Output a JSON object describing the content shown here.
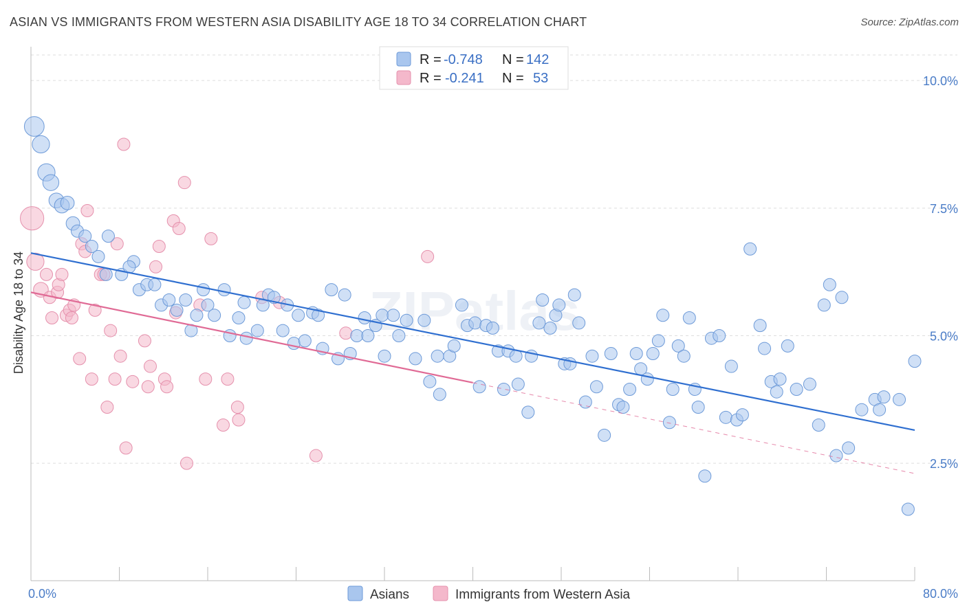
{
  "title": "ASIAN VS IMMIGRANTS FROM WESTERN ASIA DISABILITY AGE 18 TO 34 CORRELATION CHART",
  "source": "Source: ZipAtlas.com",
  "watermark": "ZIPatlas",
  "colors": {
    "asian_fill": "#a9c6ee",
    "asian_stroke": "#6d9ad8",
    "asian_line": "#2f6fd0",
    "imm_fill": "#f4b8cb",
    "imm_stroke": "#e590ac",
    "imm_line": "#e06a95",
    "tick": "#4a7cc7",
    "grid": "#dddddd"
  },
  "legend": {
    "rows": [
      {
        "r_label": "R = ",
        "r_value": "-0.748",
        "n_label": "N = ",
        "n_value": "142"
      },
      {
        "r_label": "R = ",
        "r_value": "-0.241",
        "n_label": "N = ",
        "n_value": "53"
      }
    ]
  },
  "bottom_legend": {
    "asians": "Asians",
    "immigrants": "Immigrants from Western Asia"
  },
  "chart_data": {
    "type": "scatter",
    "title": "ASIAN VS IMMIGRANTS FROM WESTERN ASIA DISABILITY AGE 18 TO 34 CORRELATION CHART",
    "xlabel": "",
    "ylabel": "Disability Age 18 to 34",
    "xlim": [
      0,
      80
    ],
    "ylim": [
      0.2,
      10.5
    ],
    "x_tick_labels": [
      "0.0%",
      "80.0%"
    ],
    "y_ticks": [
      2.5,
      5.0,
      7.5,
      10.0
    ],
    "y_tick_labels": [
      "2.5%",
      "5.0%",
      "7.5%",
      "10.0%"
    ],
    "grid": true,
    "legend_position": "top-center",
    "series": [
      {
        "name": "Asians",
        "R": -0.748,
        "N": 142,
        "trend": {
          "x0": 0,
          "y0": 6.62,
          "x1": 80,
          "y1": 3.15
        },
        "points": [
          [
            0.3,
            9.1,
            1.6
          ],
          [
            0.9,
            8.75,
            1.4
          ],
          [
            1.4,
            8.2,
            1.4
          ],
          [
            1.8,
            8.0,
            1.3
          ],
          [
            2.3,
            7.65,
            1.2
          ],
          [
            2.8,
            7.55,
            1.2
          ],
          [
            3.3,
            7.6,
            1.1
          ],
          [
            3.8,
            7.2,
            1.1
          ],
          [
            4.2,
            7.05,
            1.0
          ],
          [
            4.9,
            6.95,
            1.0
          ],
          [
            5.5,
            6.75,
            1.0
          ],
          [
            6.1,
            6.55,
            1.0
          ],
          [
            7.0,
            6.95,
            1.0
          ],
          [
            6.8,
            6.2,
            1.0
          ],
          [
            8.2,
            6.2,
            1.0
          ],
          [
            9.3,
            6.45,
            1.0
          ],
          [
            8.9,
            6.35,
            1.0
          ],
          [
            9.8,
            5.9,
            1.0
          ],
          [
            10.5,
            6.0,
            1.0
          ],
          [
            11.2,
            6.0,
            1.0
          ],
          [
            11.8,
            5.6,
            1.0
          ],
          [
            12.5,
            5.7,
            1.0
          ],
          [
            13.2,
            5.5,
            1.0
          ],
          [
            14.0,
            5.7,
            1.0
          ],
          [
            14.5,
            5.1,
            1.0
          ],
          [
            15.0,
            5.4,
            1.0
          ],
          [
            15.6,
            5.9,
            1.0
          ],
          [
            16.0,
            5.6,
            1.0
          ],
          [
            16.6,
            5.4,
            1.0
          ],
          [
            17.5,
            5.9,
            1.0
          ],
          [
            18.0,
            5.0,
            1.0
          ],
          [
            18.8,
            5.35,
            1.0
          ],
          [
            19.3,
            5.65,
            1.0
          ],
          [
            19.5,
            4.95,
            1.0
          ],
          [
            20.5,
            5.1,
            1.0
          ],
          [
            21.0,
            5.6,
            1.0
          ],
          [
            21.5,
            5.8,
            1.0
          ],
          [
            22.0,
            5.75,
            1.0
          ],
          [
            22.8,
            5.1,
            1.0
          ],
          [
            23.2,
            5.6,
            1.0
          ],
          [
            23.8,
            4.85,
            1.0
          ],
          [
            24.2,
            5.4,
            1.0
          ],
          [
            24.8,
            4.9,
            1.0
          ],
          [
            25.5,
            5.45,
            1.0
          ],
          [
            26.0,
            5.4,
            1.0
          ],
          [
            26.4,
            4.75,
            1.0
          ],
          [
            27.2,
            5.9,
            1.0
          ],
          [
            27.8,
            4.55,
            1.0
          ],
          [
            28.4,
            5.8,
            1.0
          ],
          [
            28.9,
            4.65,
            1.0
          ],
          [
            29.5,
            5.0,
            1.0
          ],
          [
            30.2,
            5.35,
            1.0
          ],
          [
            30.5,
            5.0,
            1.0
          ],
          [
            31.2,
            5.2,
            1.0
          ],
          [
            31.8,
            5.4,
            1.0
          ],
          [
            32.0,
            4.6,
            1.0
          ],
          [
            32.8,
            5.4,
            1.0
          ],
          [
            33.3,
            5.0,
            1.0
          ],
          [
            34.0,
            5.3,
            1.0
          ],
          [
            34.8,
            4.55,
            1.0
          ],
          [
            35.6,
            5.3,
            1.0
          ],
          [
            36.1,
            4.1,
            1.0
          ],
          [
            36.8,
            4.6,
            1.0
          ],
          [
            37.0,
            3.85,
            1.0
          ],
          [
            37.9,
            4.6,
            1.0
          ],
          [
            38.3,
            4.8,
            1.0
          ],
          [
            39.0,
            5.6,
            1.0
          ],
          [
            39.5,
            5.2,
            1.0
          ],
          [
            40.2,
            5.25,
            1.0
          ],
          [
            40.6,
            4.0,
            1.0
          ],
          [
            41.2,
            5.2,
            1.0
          ],
          [
            41.8,
            5.15,
            1.0
          ],
          [
            42.3,
            4.7,
            1.0
          ],
          [
            42.8,
            3.95,
            1.0
          ],
          [
            43.2,
            4.7,
            1.0
          ],
          [
            43.9,
            4.6,
            1.0
          ],
          [
            44.1,
            4.05,
            1.0
          ],
          [
            45.0,
            3.5,
            1.0
          ],
          [
            45.3,
            4.6,
            1.0
          ],
          [
            46.0,
            5.25,
            1.0
          ],
          [
            46.3,
            5.7,
            1.0
          ],
          [
            47.0,
            5.15,
            1.0
          ],
          [
            47.5,
            5.4,
            1.0
          ],
          [
            47.8,
            5.6,
            1.0
          ],
          [
            48.3,
            4.45,
            1.0
          ],
          [
            48.8,
            4.45,
            1.0
          ],
          [
            49.2,
            5.8,
            1.0
          ],
          [
            49.6,
            5.25,
            1.0
          ],
          [
            50.2,
            3.7,
            1.0
          ],
          [
            50.8,
            4.6,
            1.0
          ],
          [
            51.2,
            4.0,
            1.0
          ],
          [
            51.9,
            3.05,
            1.0
          ],
          [
            52.5,
            4.65,
            1.0
          ],
          [
            53.2,
            3.65,
            1.0
          ],
          [
            53.6,
            3.6,
            1.0
          ],
          [
            54.2,
            3.95,
            1.0
          ],
          [
            54.8,
            4.65,
            1.0
          ],
          [
            55.2,
            4.35,
            1.0
          ],
          [
            55.8,
            4.15,
            1.0
          ],
          [
            56.3,
            4.65,
            1.0
          ],
          [
            56.8,
            4.9,
            1.0
          ],
          [
            57.2,
            5.4,
            1.0
          ],
          [
            57.8,
            3.3,
            1.0
          ],
          [
            58.1,
            3.95,
            1.0
          ],
          [
            58.6,
            4.8,
            1.0
          ],
          [
            59.1,
            4.6,
            1.0
          ],
          [
            59.6,
            5.35,
            1.0
          ],
          [
            60.1,
            3.95,
            1.0
          ],
          [
            60.4,
            3.6,
            1.0
          ],
          [
            61.0,
            2.25,
            1.0
          ],
          [
            61.6,
            4.95,
            1.0
          ],
          [
            62.3,
            5.0,
            1.0
          ],
          [
            62.9,
            3.4,
            1.0
          ],
          [
            63.4,
            4.4,
            1.0
          ],
          [
            63.9,
            3.35,
            1.0
          ],
          [
            64.4,
            3.45,
            1.0
          ],
          [
            65.1,
            6.7,
            1.0
          ],
          [
            66.0,
            5.2,
            1.0
          ],
          [
            66.4,
            4.75,
            1.0
          ],
          [
            67.0,
            4.1,
            1.0
          ],
          [
            67.5,
            3.9,
            1.0
          ],
          [
            67.8,
            4.15,
            1.0
          ],
          [
            68.5,
            4.8,
            1.0
          ],
          [
            69.3,
            3.95,
            1.0
          ],
          [
            70.5,
            4.05,
            1.0
          ],
          [
            71.3,
            3.25,
            1.0
          ],
          [
            71.8,
            5.6,
            1.0
          ],
          [
            72.3,
            6.0,
            1.0
          ],
          [
            72.9,
            2.65,
            1.0
          ],
          [
            73.4,
            5.75,
            1.0
          ],
          [
            74.0,
            2.8,
            1.0
          ],
          [
            75.2,
            3.55,
            1.0
          ],
          [
            76.4,
            3.75,
            1.0
          ],
          [
            76.8,
            3.55,
            1.0
          ],
          [
            77.2,
            3.8,
            1.0
          ],
          [
            78.6,
            3.75,
            1.0
          ],
          [
            79.4,
            1.6,
            1.0
          ],
          [
            80.0,
            4.5,
            1.0
          ]
        ]
      },
      {
        "name": "Immigrants from Western Asia",
        "R": -0.241,
        "N": 53,
        "trend": {
          "x0": 0,
          "y0": 5.85,
          "x1": 40,
          "y1": 4.08,
          "dash_x1": 80,
          "dash_y1": 2.3
        },
        "points": [
          [
            0.1,
            7.3,
            1.9
          ],
          [
            0.4,
            6.45,
            1.4
          ],
          [
            0.9,
            5.9,
            1.2
          ],
          [
            1.4,
            6.2,
            1.0
          ],
          [
            1.7,
            5.75,
            1.0
          ],
          [
            1.9,
            5.35,
            1.0
          ],
          [
            2.4,
            5.85,
            1.0
          ],
          [
            2.5,
            6.0,
            1.0
          ],
          [
            2.8,
            6.2,
            1.0
          ],
          [
            3.2,
            5.4,
            1.0
          ],
          [
            3.5,
            5.5,
            1.0
          ],
          [
            3.7,
            5.35,
            1.0
          ],
          [
            3.9,
            5.6,
            1.0
          ],
          [
            4.4,
            4.55,
            1.0
          ],
          [
            4.6,
            6.8,
            1.0
          ],
          [
            4.9,
            6.65,
            1.0
          ],
          [
            5.1,
            7.45,
            1.0
          ],
          [
            5.5,
            4.15,
            1.0
          ],
          [
            5.8,
            5.5,
            1.0
          ],
          [
            6.3,
            6.2,
            1.0
          ],
          [
            6.6,
            6.2,
            1.0
          ],
          [
            6.9,
            3.6,
            1.0
          ],
          [
            7.2,
            5.1,
            1.0
          ],
          [
            7.6,
            4.15,
            1.0
          ],
          [
            7.8,
            6.8,
            1.0
          ],
          [
            8.1,
            4.6,
            1.0
          ],
          [
            8.4,
            8.75,
            1.0
          ],
          [
            8.6,
            2.8,
            1.0
          ],
          [
            9.2,
            4.1,
            1.0
          ],
          [
            10.3,
            4.9,
            1.0
          ],
          [
            10.6,
            4.0,
            1.0
          ],
          [
            10.8,
            4.4,
            1.0
          ],
          [
            11.3,
            6.35,
            1.0
          ],
          [
            11.6,
            6.75,
            1.0
          ],
          [
            12.1,
            4.15,
            1.0
          ],
          [
            12.3,
            4.0,
            1.0
          ],
          [
            12.9,
            7.25,
            1.0
          ],
          [
            13.1,
            5.45,
            1.0
          ],
          [
            13.4,
            7.1,
            1.0
          ],
          [
            13.9,
            8.0,
            1.0
          ],
          [
            14.1,
            2.5,
            1.0
          ],
          [
            15.3,
            5.6,
            1.0
          ],
          [
            15.8,
            4.15,
            1.0
          ],
          [
            16.3,
            6.9,
            1.0
          ],
          [
            17.4,
            3.25,
            1.0
          ],
          [
            17.8,
            4.15,
            1.0
          ],
          [
            18.8,
            3.35,
            1.0
          ],
          [
            18.7,
            3.6,
            1.0
          ],
          [
            20.9,
            5.75,
            1.0
          ],
          [
            22.5,
            5.65,
            1.0
          ],
          [
            25.8,
            2.65,
            1.0
          ],
          [
            28.5,
            5.05,
            1.0
          ],
          [
            35.9,
            6.55,
            1.0
          ]
        ]
      }
    ]
  }
}
